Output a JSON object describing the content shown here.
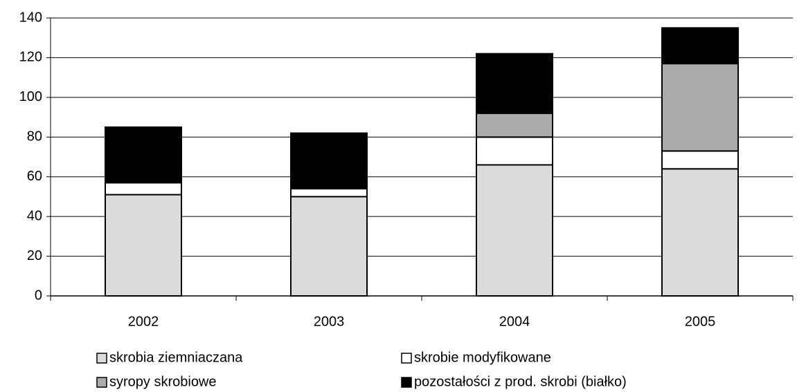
{
  "chart_data": {
    "type": "stacked_bar",
    "categories": [
      "2002",
      "2003",
      "2004",
      "2005"
    ],
    "series": [
      {
        "name": "skrobia ziemniaczana",
        "color": "#dcdcdc",
        "values": [
          51,
          50,
          66,
          64
        ]
      },
      {
        "name": "skrobie modyfikowane",
        "color": "#ffffff",
        "values": [
          6,
          4,
          14,
          9
        ]
      },
      {
        "name": "syropy skrobiowe",
        "color": "#ababab",
        "values": [
          0,
          0,
          12,
          44
        ]
      },
      {
        "name": "pozostałości z prod. skrobi (białko)",
        "color": "#000000",
        "values": [
          28,
          28,
          30,
          18
        ]
      }
    ],
    "ylim": [
      0,
      140
    ],
    "yticks": [
      0,
      20,
      40,
      60,
      80,
      100,
      120,
      140
    ],
    "grid": true
  }
}
